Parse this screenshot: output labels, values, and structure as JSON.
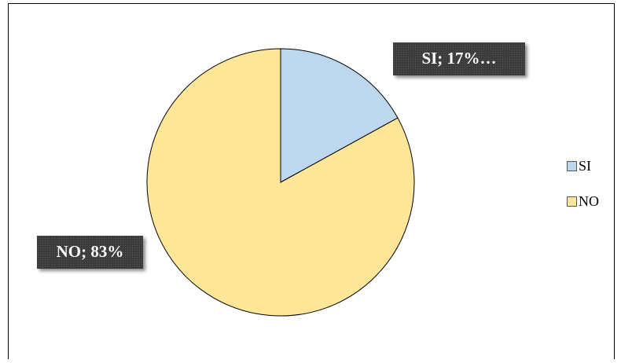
{
  "chart_data": {
    "type": "pie",
    "categories": [
      "SI",
      "NO"
    ],
    "values": [
      17,
      83
    ],
    "value_labels": [
      "SI; 17%…",
      "NO; 83%"
    ],
    "colors": [
      "#bdd7ee",
      "#ffe699"
    ],
    "legend": "right"
  }
}
